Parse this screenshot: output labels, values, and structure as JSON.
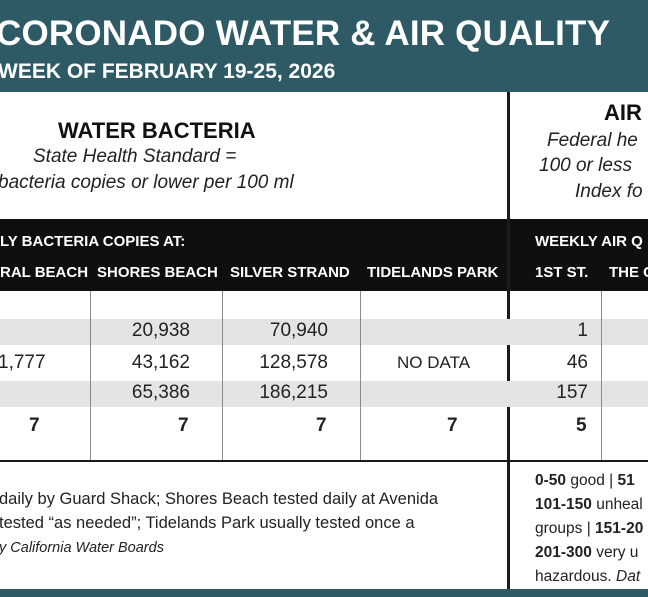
{
  "header": {
    "title": "CORONADO WATER & AIR QUALITY",
    "week": "WEEK OF FEBRUARY 19-25, 2026"
  },
  "water": {
    "heading": "WATER BACTERIA",
    "standard_line1": "State Health Standard  =",
    "standard_line2": "bacteria copies or lower per 100 ml",
    "bar_label": "LY BACTERIA COPIES AT:",
    "columns": [
      "RAL BEACH",
      "SHORES BEACH",
      "SILVER STRAND",
      "TIDELANDS PARK"
    ],
    "rows": [
      [
        "",
        "20,938",
        "70,940",
        ""
      ],
      [
        "1,777",
        "43,162",
        "128,578",
        "NO DATA"
      ],
      [
        "",
        "65,386",
        "186,215",
        ""
      ],
      [
        "7",
        "7",
        "7",
        "7"
      ]
    ],
    "note_line1": "daily by Guard Shack; Shores Beach tested daily at Avenida",
    "note_line2": "tested “as needed”; Tidelands Park usually tested once a",
    "note_source": "y California Water Boards"
  },
  "air": {
    "heading": "AIR",
    "standard_line1": "Federal he",
    "standard_line2": "100 or less",
    "standard_line3": "Index fo",
    "bar_label": "WEEKLY AIR Q",
    "columns": [
      "1ST ST.",
      "THE C"
    ],
    "rows": [
      [
        "1",
        ""
      ],
      [
        "46",
        ""
      ],
      [
        "157",
        ""
      ],
      [
        "5",
        ""
      ]
    ],
    "scale": {
      "l1_range": "0-50",
      "l1_text": " good | ",
      "l1_next": "51",
      "l2_range": "101-150",
      "l2_text": " unheal",
      "l3_text": "groups | ",
      "l3_range": "151-20",
      "l4_range": "201-300",
      "l4_text": " very u",
      "l5_text": "hazardous. ",
      "l5_italic": "Dat"
    }
  },
  "colors": {
    "header_bg": "#2e5a66",
    "bar_bg": "#0f0f0f",
    "row_shade": "#e4e4e4"
  }
}
